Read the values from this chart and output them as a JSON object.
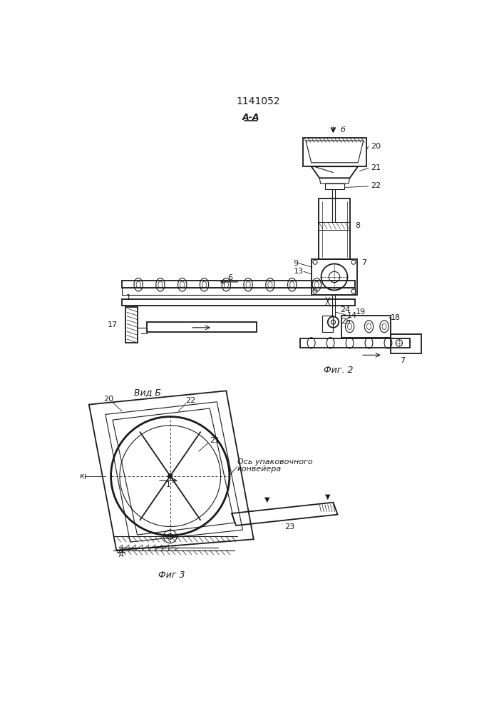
{
  "title": "1141052",
  "background_color": "#ffffff",
  "line_color": "#1a1a1a",
  "fig_width": 7.07,
  "fig_height": 10.0,
  "section_label": "A-A",
  "view_label": "Вид Б",
  "fig2_label": "Фиг. 2",
  "fig3_label": "Фиг 3",
  "axis_label": "Ось упаковочного\nконвейера"
}
